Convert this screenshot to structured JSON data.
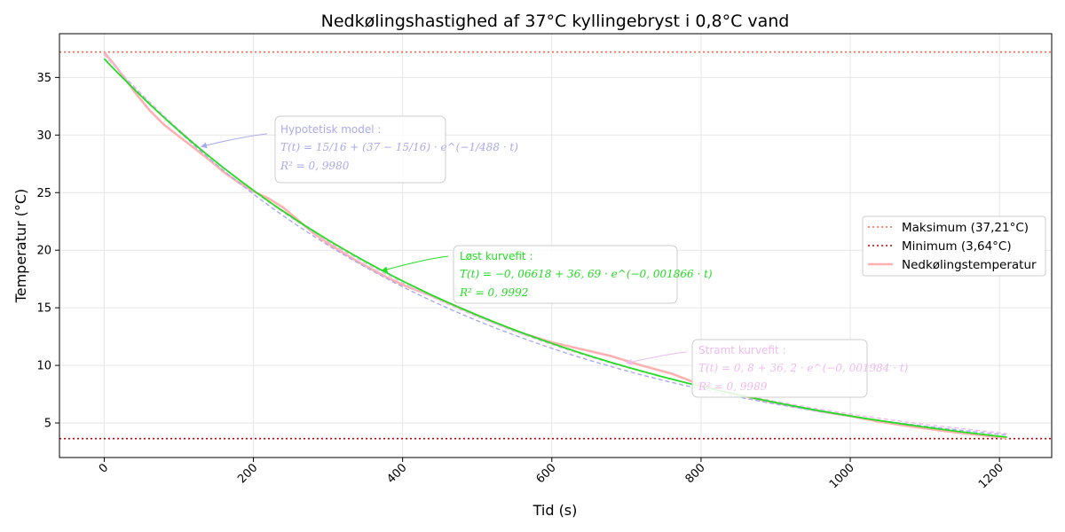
{
  "chart_data": {
    "type": "line",
    "title": "Nedkølingshastighed af 37°C kyllingebryst i 0,8°C vand",
    "xlabel": "Tid (s)",
    "ylabel": "Temperatur (°C)",
    "xlim": [
      -60,
      1270
    ],
    "ylim": [
      2.0,
      38.8
    ],
    "xticks": [
      0,
      200,
      400,
      600,
      800,
      1000,
      1200
    ],
    "yticks": [
      5,
      10,
      15,
      20,
      25,
      30,
      35
    ],
    "grid": true,
    "legend_position": "center-right",
    "hlines": [
      {
        "name": "Maksimum (37,21°C)",
        "y": 37.21,
        "color": "#ff6347",
        "style": "dotted"
      },
      {
        "name": "Minimum (3,64°C)",
        "y": 3.64,
        "color": "#cc0000",
        "style": "dotted"
      }
    ],
    "series": [
      {
        "name": "Nedkølingstemperatur",
        "color": "#ffb0b0",
        "x": [
          0,
          20,
          40,
          60,
          80,
          100,
          120,
          140,
          160,
          180,
          200,
          220,
          240,
          260,
          280,
          300,
          320,
          340,
          360,
          380,
          400,
          440,
          480,
          520,
          560,
          600,
          640,
          680,
          720,
          760,
          800,
          840,
          880,
          920,
          960,
          1000,
          1040,
          1080,
          1120,
          1160,
          1210
        ],
        "values": [
          37.2,
          35.6,
          33.8,
          32.2,
          30.9,
          29.9,
          28.9,
          27.9,
          26.8,
          25.9,
          25.1,
          24.5,
          23.7,
          22.6,
          21.5,
          20.6,
          19.8,
          19.0,
          18.3,
          17.6,
          17.0,
          16.0,
          14.9,
          13.8,
          12.8,
          12.0,
          11.4,
          10.8,
          10.0,
          9.3,
          8.3,
          7.6,
          7.0,
          6.5,
          6.0,
          5.6,
          5.1,
          4.7,
          4.35,
          4.05,
          3.7
        ]
      }
    ],
    "fits": [
      {
        "name": "Hypotetisk model",
        "color": "#aaaaee",
        "style": "dashed",
        "model": "T(t) = 15/16 + (37 - 15/16)·e^(-t/488)",
        "label_title": "Hypotetisk model :",
        "label_eq": "T(t) = 15/16 + (37 − 15/16) · e^(−1/488 · t)",
        "label_r2": "R² = 0, 9980",
        "x_start": 0,
        "x_end": 1210,
        "arrow_target": {
          "x": 130,
          "y": 29.0
        }
      },
      {
        "name": "Løst kurvefit",
        "color": "#22dd22",
        "style": "solid",
        "model": "T(t) = -0.06618 + 36.69·e^(-0.001866·t)",
        "label_title": "Løst kurvefit :",
        "label_eq": "T(t) = −0, 06618 + 36, 69 · e^(−0, 001866 · t)",
        "label_r2": "R² = 0, 9992",
        "x_start": 0,
        "x_end": 1210,
        "arrow_target": {
          "x": 372,
          "y": 18.2
        }
      },
      {
        "name": "Stramt kurvefit",
        "color": "#eebbee",
        "style": "dashed",
        "model": "T(t) = 0.8 + 36.2·e^(-0.001984·t)",
        "label_title": "Stramt kurvefit :",
        "label_eq": "T(t) = 0, 8 + 36, 2 · e^(−0, 001984 · t)",
        "label_r2": "R² = 0, 9989",
        "x_start": 0,
        "x_end": 1210,
        "arrow_target": {
          "x": 700,
          "y": 10.2
        }
      }
    ]
  }
}
